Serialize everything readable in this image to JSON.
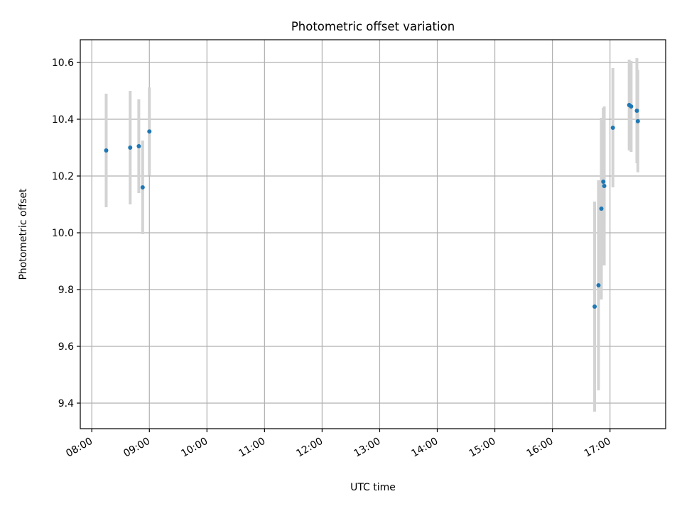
{
  "chart_data": {
    "type": "scatter",
    "title": "Photometric offset variation",
    "xlabel": "UTC time",
    "ylabel": "Photometric offset",
    "xlim": [
      "07:48",
      "17:58"
    ],
    "ylim": [
      9.31,
      10.68
    ],
    "x_ticks": [
      "08:00",
      "09:00",
      "10:00",
      "11:00",
      "12:00",
      "13:00",
      "14:00",
      "15:00",
      "16:00",
      "17:00"
    ],
    "y_ticks": [
      9.4,
      9.6,
      9.8,
      10.0,
      10.2,
      10.4,
      10.6
    ],
    "y_tick_labels": [
      "9.4",
      "9.6",
      "9.8",
      "10.0",
      "10.2",
      "10.4",
      "10.6"
    ],
    "grid": true,
    "colors": {
      "points": "#1f77b4",
      "errorbars": "#d3d3d3",
      "grid": "#b0b0b0"
    },
    "series": [
      {
        "points": [
          {
            "x": "08:15",
            "y": 10.29,
            "err": 0.2
          },
          {
            "x": "08:40",
            "y": 10.3,
            "err": 0.2
          },
          {
            "x": "08:49",
            "y": 10.305,
            "err": 0.165
          },
          {
            "x": "08:53",
            "y": 10.16,
            "err": 0.165
          },
          {
            "x": "09:00",
            "y": 10.357,
            "err": 0.155
          },
          {
            "x": "16:44",
            "y": 9.74,
            "err": 0.37
          },
          {
            "x": "16:48",
            "y": 9.815,
            "err": 0.37
          },
          {
            "x": "16:51",
            "y": 10.085,
            "err": 0.32
          },
          {
            "x": "16:53",
            "y": 10.18,
            "err": 0.26
          },
          {
            "x": "16:54",
            "y": 10.165,
            "err": 0.28
          },
          {
            "x": "17:03",
            "y": 10.37,
            "err": 0.21
          },
          {
            "x": "17:20",
            "y": 10.45,
            "err": 0.16
          },
          {
            "x": "17:22",
            "y": 10.445,
            "err": 0.16
          },
          {
            "x": "17:28",
            "y": 10.43,
            "err": 0.185
          },
          {
            "x": "17:29",
            "y": 10.393,
            "err": 0.18
          }
        ]
      }
    ]
  }
}
